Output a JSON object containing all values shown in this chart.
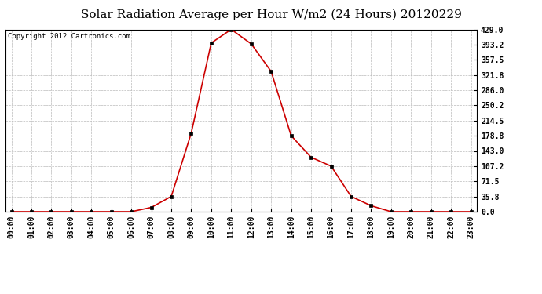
{
  "title": "Solar Radiation Average per Hour W/m2 (24 Hours) 20120229",
  "copyright_text": "Copyright 2012 Cartronics.com",
  "hours": [
    "00:00",
    "01:00",
    "02:00",
    "03:00",
    "04:00",
    "05:00",
    "06:00",
    "07:00",
    "08:00",
    "09:00",
    "10:00",
    "11:00",
    "12:00",
    "13:00",
    "14:00",
    "15:00",
    "16:00",
    "17:00",
    "18:00",
    "19:00",
    "20:00",
    "21:00",
    "22:00",
    "23:00"
  ],
  "values": [
    0.0,
    0.0,
    0.0,
    0.0,
    0.0,
    0.0,
    0.0,
    10.0,
    35.8,
    185.0,
    397.0,
    429.0,
    395.0,
    330.0,
    178.8,
    128.0,
    107.2,
    35.8,
    14.0,
    0.0,
    0.0,
    0.0,
    0.0,
    0.0
  ],
  "line_color": "#cc0000",
  "marker_color": "#000000",
  "bg_color": "#ffffff",
  "grid_color": "#bbbbbb",
  "yticks": [
    0.0,
    35.8,
    71.5,
    107.2,
    143.0,
    178.8,
    214.5,
    250.2,
    286.0,
    321.8,
    357.5,
    393.2,
    429.0
  ],
  "ymax": 429.0,
  "title_fontsize": 11,
  "copyright_fontsize": 6.5,
  "tick_fontsize": 7,
  "figwidth": 6.9,
  "figheight": 3.75,
  "dpi": 100
}
